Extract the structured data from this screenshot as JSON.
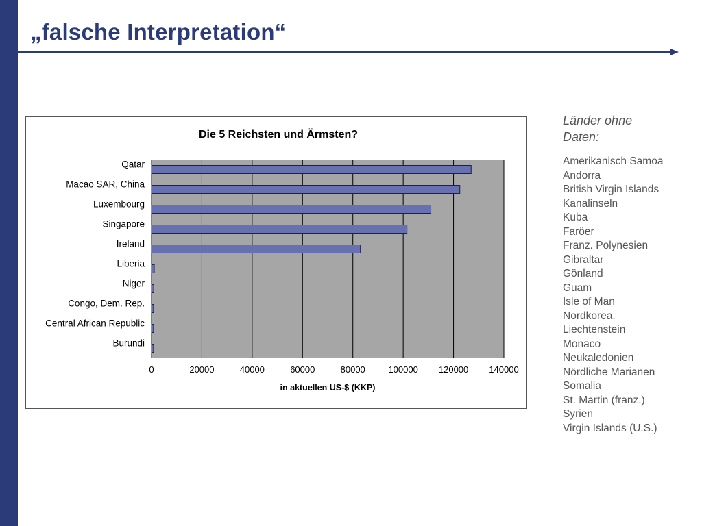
{
  "slide": {
    "title": "„falsche Interpretation“"
  },
  "colors": {
    "brand": "#2b3b7a",
    "bar_fill": "#6670b2",
    "plot_background": "#a6a6a6",
    "text_gray": "#555555"
  },
  "chart_data": {
    "type": "bar",
    "orientation": "horizontal",
    "title": "Die 5 Reichsten und Ärmsten?",
    "xlabel": "in aktuellen US-$ (KKP)",
    "ylabel": "",
    "categories": [
      "Qatar",
      "Macao SAR, China",
      "Luxembourg",
      "Singapore",
      "Ireland",
      "Liberia",
      "Niger",
      "Congo, Dem. Rep.",
      "Central African Republic",
      "Burundi"
    ],
    "values": [
      127000,
      122500,
      111000,
      101500,
      83000,
      1100,
      900,
      800,
      800,
      700
    ],
    "xlim": [
      0,
      140000
    ],
    "xticks": [
      0,
      20000,
      40000,
      60000,
      80000,
      100000,
      120000,
      140000
    ],
    "grid": "vertical",
    "legend": "none"
  },
  "side_panel": {
    "heading": "Länder ohne Daten:",
    "items": [
      "Amerikanisch Samoa",
      "Andorra",
      "British Virgin Islands",
      "Kanalinseln",
      "Kuba",
      "Faröer",
      "Franz. Polynesien",
      "Gibraltar",
      "Gönland",
      "Guam",
      "Isle of Man",
      "Nordkorea.",
      "Liechtenstein",
      "Monaco",
      "Neukaledonien",
      "Nördliche Marianen",
      "Somalia",
      "St. Martin (franz.)",
      "Syrien",
      "Virgin Islands (U.S.)"
    ]
  }
}
